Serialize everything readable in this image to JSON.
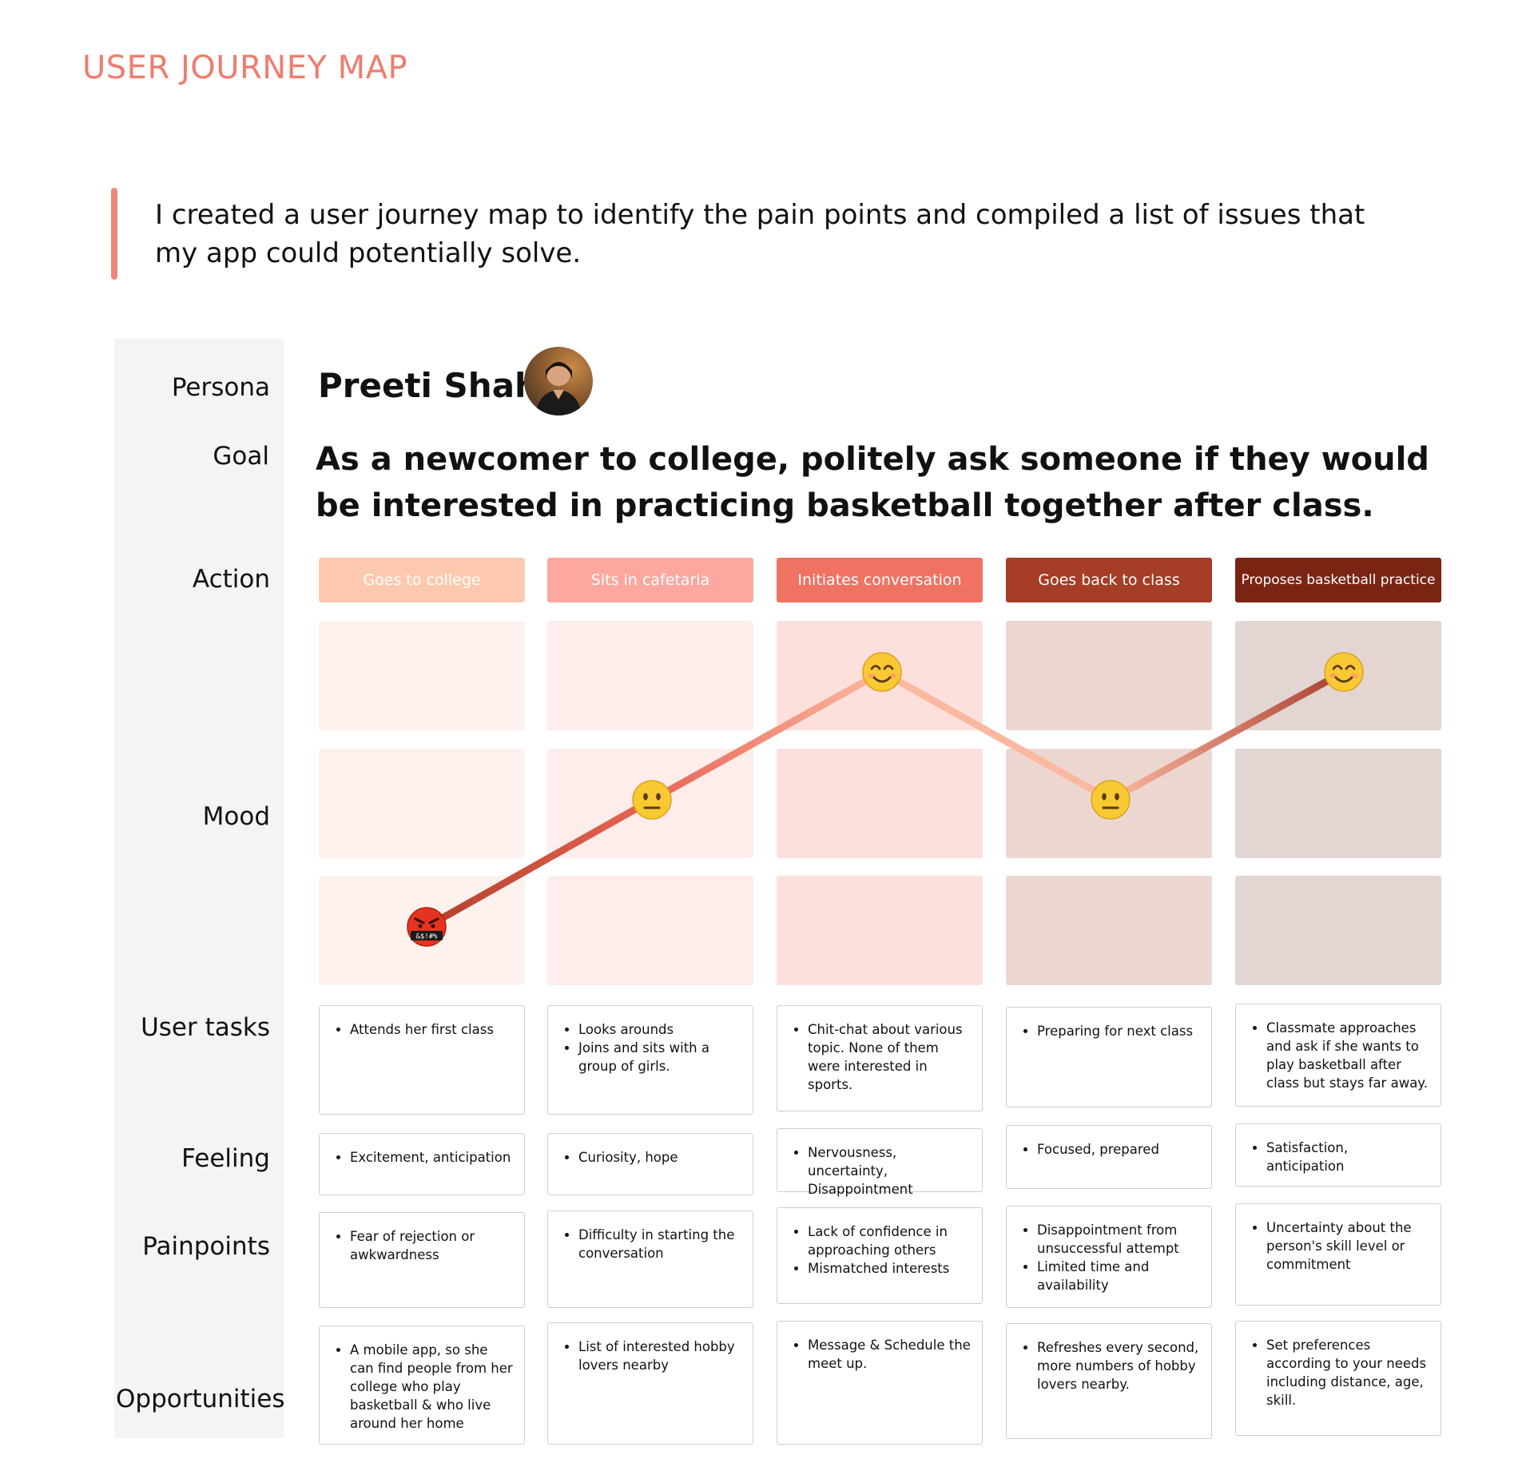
{
  "title": "USER JOURNEY MAP",
  "intro": "I created a user journey map to identify the pain points and compiled a list of issues that my app could potentially solve.",
  "labels": {
    "persona": "Persona",
    "goal": "Goal",
    "action": "Action",
    "mood": "Mood",
    "user_tasks": "User tasks",
    "feeling": "Feeling",
    "painpoints": "Painpoints",
    "opportunities": "Opportunities"
  },
  "persona": {
    "name": "Preeti Shah",
    "avatar_icon": "persona-photo"
  },
  "goal": "As a newcomer to college, politely ask someone if they would be interested in practicing basketball together after class.",
  "colors": {
    "accent": "#EE7D6F",
    "stage_pills": [
      "#FDC9AE",
      "#FCA8A0",
      "#F07263",
      "#A63D26",
      "#7A2514"
    ],
    "stage_pill_text": [
      "#FFFFFF",
      "#FFFFFF",
      "#FFFFFF",
      "#FFFFFF",
      "#FFFFFF"
    ],
    "mood_cells": [
      "#FFF2EE",
      "#FFEDEB",
      "#FDE0DC",
      "#ECD7D0",
      "#E3D5D1"
    ],
    "mood_line": [
      "#B3412A",
      "#E96555",
      "#FBB9A0",
      "#FBB7A0",
      "#A9412E"
    ]
  },
  "stages": [
    {
      "action": "Goes to college",
      "mood": "angry",
      "mood_level": 1,
      "mood_icon": "angry-swearing-face-icon",
      "tasks": [
        "Attends her first class"
      ],
      "feeling": [
        "Excitement, anticipation"
      ],
      "painpoints": [
        "Fear of rejection or awkwardness"
      ],
      "opportunities": [
        "A mobile app, so she can find people from her college who play basketball & who live around her home"
      ]
    },
    {
      "action": "Sits in cafetaria",
      "mood": "neutral",
      "mood_level": 2,
      "mood_icon": "neutral-face-icon",
      "tasks": [
        "Looks arounds",
        "Joins and sits with a group of girls."
      ],
      "feeling": [
        "Curiosity, hope"
      ],
      "painpoints": [
        "Difficulty in starting the conversation"
      ],
      "opportunities": [
        "List of interested hobby lovers nearby"
      ]
    },
    {
      "action": "Initiates conversation",
      "mood": "happy",
      "mood_level": 3,
      "mood_icon": "smiling-face-icon",
      "tasks": [
        "Chit-chat about various topic. None of them were interested in sports."
      ],
      "feeling": [
        "Nervousness, uncertainty, Disappointment"
      ],
      "painpoints": [
        "Lack of confidence in approaching others",
        "Mismatched interests"
      ],
      "opportunities": [
        "Message & Schedule the meet up."
      ]
    },
    {
      "action": "Goes back to class",
      "mood": "neutral",
      "mood_level": 2,
      "mood_icon": "neutral-face-icon",
      "tasks": [
        "Preparing for next class"
      ],
      "feeling": [
        "Focused, prepared"
      ],
      "painpoints": [
        "Disappointment from unsuccessful attempt",
        "Limited time and availability"
      ],
      "opportunities": [
        "Refreshes every second, more numbers of hobby lovers nearby."
      ]
    },
    {
      "action": "Proposes basketball practice",
      "mood": "happy",
      "mood_level": 3,
      "mood_icon": "smiling-face-icon",
      "tasks": [
        "Classmate approaches and ask if she wants to play basketball after class but stays far away."
      ],
      "feeling": [
        "Satisfaction, anticipation"
      ],
      "painpoints": [
        "Uncertainty about the person's skill level or commitment"
      ],
      "opportunities": [
        "Set preferences according to your needs including distance, age, skill."
      ]
    }
  ]
}
